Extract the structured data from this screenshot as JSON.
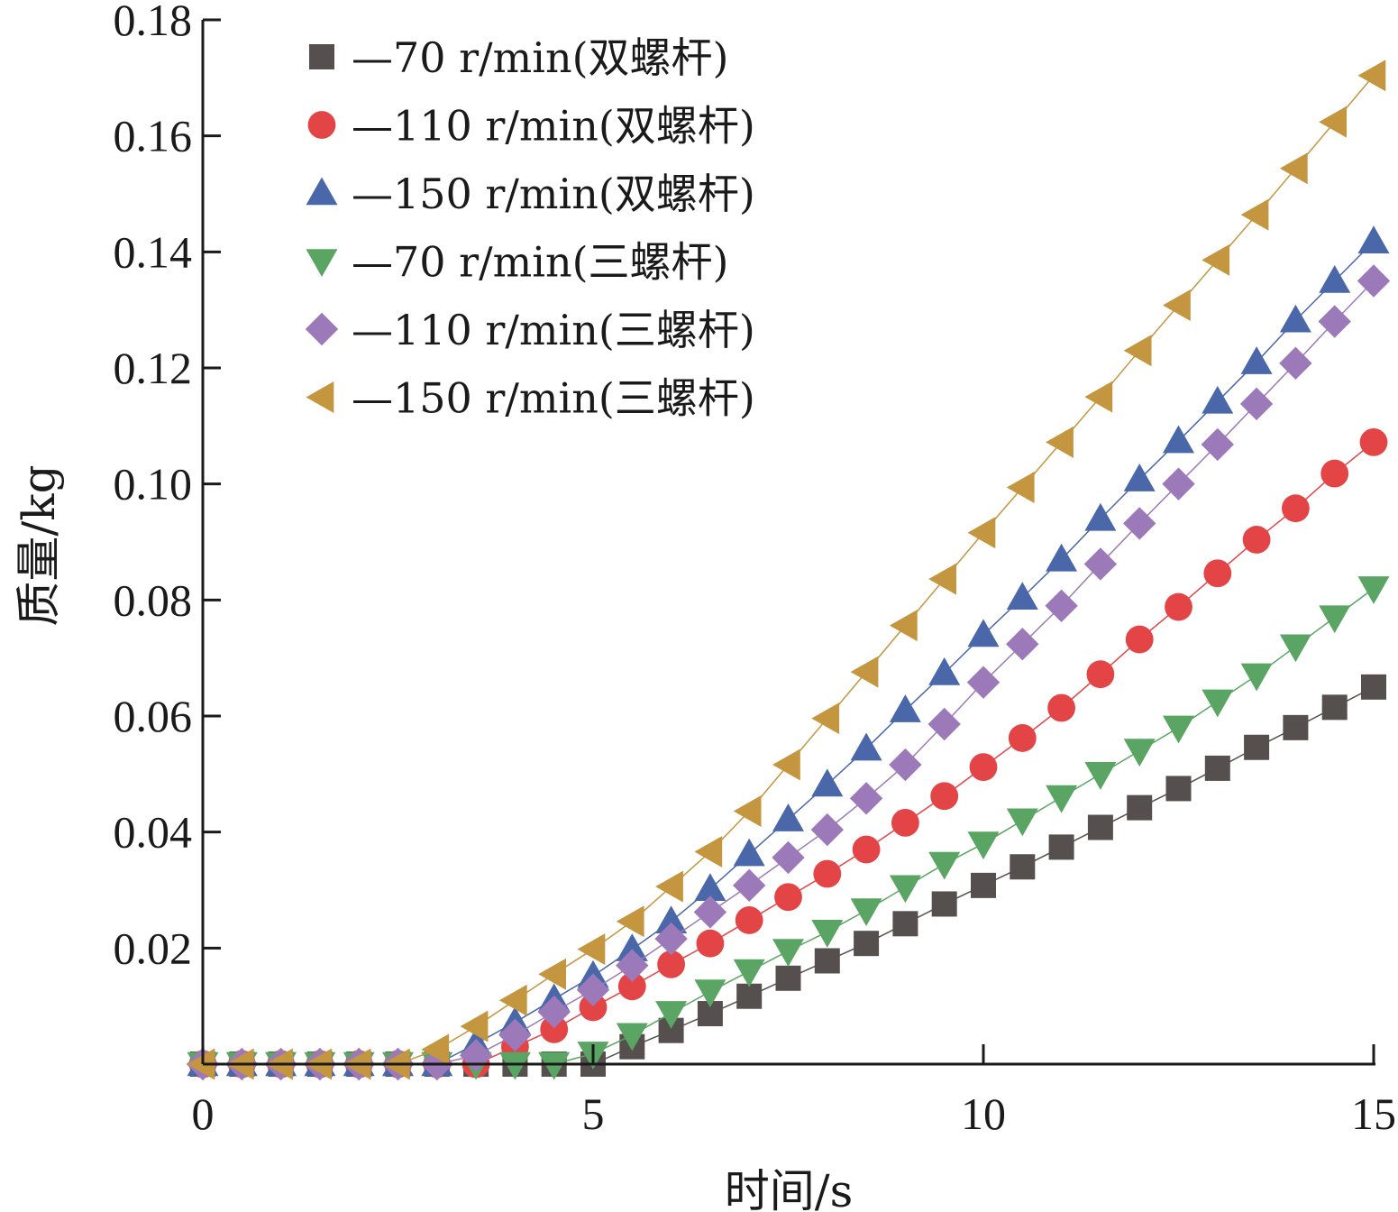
{
  "chart_data": {
    "type": "line",
    "xlabel": "时间/s",
    "ylabel": "质量/kg",
    "xlim": [
      0,
      15
    ],
    "ylim": [
      0,
      0.18
    ],
    "x_ticks": [
      0,
      5,
      10,
      15
    ],
    "x_tick_labels": [
      "0",
      "5",
      "10",
      "15"
    ],
    "y_ticks": [
      0.02,
      0.04,
      0.06,
      0.08,
      0.1,
      0.12,
      0.14,
      0.16,
      0.18
    ],
    "y_tick_labels": [
      "0.02",
      "0.04",
      "0.06",
      "0.08",
      "0.10",
      "0.12",
      "0.14",
      "0.16",
      "0.18"
    ],
    "grid": false,
    "legend_position": "top-left",
    "x": [
      0,
      0.5,
      1,
      1.5,
      2,
      2.5,
      3,
      3.5,
      4,
      4.5,
      5,
      5.5,
      6,
      6.5,
      7,
      7.5,
      8,
      8.5,
      9,
      9.5,
      10,
      10.5,
      11,
      11.5,
      12,
      12.5,
      13,
      13.5,
      14,
      14.5,
      15
    ],
    "series": [
      {
        "name": "—70 r/min(双螺杆)",
        "marker": "square",
        "color": "#55504d",
        "values": [
          0,
          0,
          0,
          0,
          0,
          0,
          0,
          0,
          0,
          0,
          0,
          0.003,
          0.0058,
          0.0087,
          0.0117,
          0.0148,
          0.0178,
          0.0208,
          0.0242,
          0.0276,
          0.0308,
          0.034,
          0.0374,
          0.0408,
          0.0442,
          0.0475,
          0.051,
          0.0546,
          0.058,
          0.0615,
          0.065
        ]
      },
      {
        "name": "—110 r/min(双螺杆)",
        "marker": "circle",
        "color": "#e34446",
        "values": [
          0,
          0,
          0,
          0,
          0,
          0,
          0,
          0,
          0.003,
          0.006,
          0.0098,
          0.0134,
          0.0172,
          0.0208,
          0.0248,
          0.0288,
          0.0328,
          0.037,
          0.0416,
          0.0462,
          0.0512,
          0.0562,
          0.0614,
          0.0672,
          0.0732,
          0.0788,
          0.0846,
          0.0904,
          0.0958,
          0.1018,
          0.1072
        ]
      },
      {
        "name": "—150 r/min(双螺杆)",
        "marker": "triangle-up",
        "color": "#4a68a9",
        "values": [
          0,
          0,
          0,
          0,
          0,
          0,
          0,
          0.0035,
          0.0072,
          0.0112,
          0.0152,
          0.0198,
          0.0246,
          0.0302,
          0.0362,
          0.0422,
          0.0482,
          0.0544,
          0.061,
          0.0674,
          0.074,
          0.0804,
          0.087,
          0.094,
          0.1008,
          0.1074,
          0.1142,
          0.121,
          0.1282,
          0.135,
          0.1418
        ]
      },
      {
        "name": "—70 r/min(三螺杆)",
        "marker": "triangle-down",
        "color": "#5ba564",
        "values": [
          0,
          0,
          0,
          0,
          0,
          0,
          0,
          0,
          0,
          0,
          0.0018,
          0.005,
          0.0088,
          0.0125,
          0.016,
          0.0195,
          0.0228,
          0.0265,
          0.0305,
          0.0345,
          0.038,
          0.042,
          0.046,
          0.05,
          0.054,
          0.058,
          0.0625,
          0.067,
          0.072,
          0.077,
          0.082
        ]
      },
      {
        "name": "—110 r/min(三螺杆)",
        "marker": "diamond",
        "color": "#9c7ab9",
        "values": [
          0,
          0,
          0,
          0,
          0,
          0,
          0,
          0.0015,
          0.005,
          0.009,
          0.0128,
          0.017,
          0.0216,
          0.0262,
          0.0308,
          0.0356,
          0.0404,
          0.0458,
          0.0516,
          0.0586,
          0.0658,
          0.0724,
          0.079,
          0.0862,
          0.0932,
          0.1,
          0.1068,
          0.1138,
          0.1208,
          0.128,
          0.135
        ]
      },
      {
        "name": "—150 r/min(三螺杆)",
        "marker": "triangle-left",
        "color": "#c3963f",
        "values": [
          0,
          0,
          0,
          0,
          0,
          0,
          0.0025,
          0.0065,
          0.011,
          0.0155,
          0.0198,
          0.0246,
          0.0306,
          0.0366,
          0.0436,
          0.0516,
          0.0596,
          0.0676,
          0.0756,
          0.0836,
          0.0916,
          0.0994,
          0.1072,
          0.115,
          0.123,
          0.1308,
          0.1386,
          0.1464,
          0.1544,
          0.1624,
          0.1704
        ]
      }
    ]
  }
}
